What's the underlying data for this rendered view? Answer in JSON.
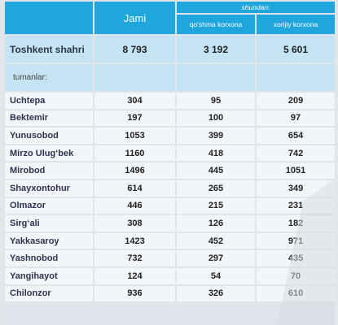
{
  "header": {
    "jami": "Jami",
    "shundan": "shundan:",
    "qoshma": "qo‘shma korxona",
    "xorijiy": "xorijiy korxona"
  },
  "total": {
    "name": "Toshkent shahri",
    "jami": "8 793",
    "qoshma": "3 192",
    "xorijiy": "5 601"
  },
  "section_label": "tumanlar:",
  "rows": [
    {
      "name": "Uchtepa",
      "jami": "304",
      "qoshma": "95",
      "xorijiy": "209"
    },
    {
      "name": "Bektemir",
      "jami": "197",
      "qoshma": "100",
      "xorijiy": "97"
    },
    {
      "name": "Yunusobod",
      "jami": "1053",
      "qoshma": "399",
      "xorijiy": "654"
    },
    {
      "name": "Mirzo Ulug‘bek",
      "jami": "1160",
      "qoshma": "418",
      "xorijiy": "742"
    },
    {
      "name": "Mirobod",
      "jami": "1496",
      "qoshma": "445",
      "xorijiy": "1051"
    },
    {
      "name": "Shayxontohur",
      "jami": "614",
      "qoshma": "265",
      "xorijiy": "349"
    },
    {
      "name": "Olmazor",
      "jami": "446",
      "qoshma": "215",
      "xorijiy": "231"
    },
    {
      "name": "Sirg‘ali",
      "jami": "308",
      "qoshma": "126",
      "xorijiy": "182"
    },
    {
      "name": "Yakkasaroy",
      "jami": "1423",
      "qoshma": "452",
      "xorijiy": "971"
    },
    {
      "name": "Yashnobod",
      "jami": "732",
      "qoshma": "297",
      "xorijiy": "435"
    },
    {
      "name": "Yangihayot",
      "jami": "124",
      "qoshma": "54",
      "xorijiy": "70"
    },
    {
      "name": "Chilonzor",
      "jami": "936",
      "qoshma": "326",
      "xorijiy": "610"
    }
  ]
}
